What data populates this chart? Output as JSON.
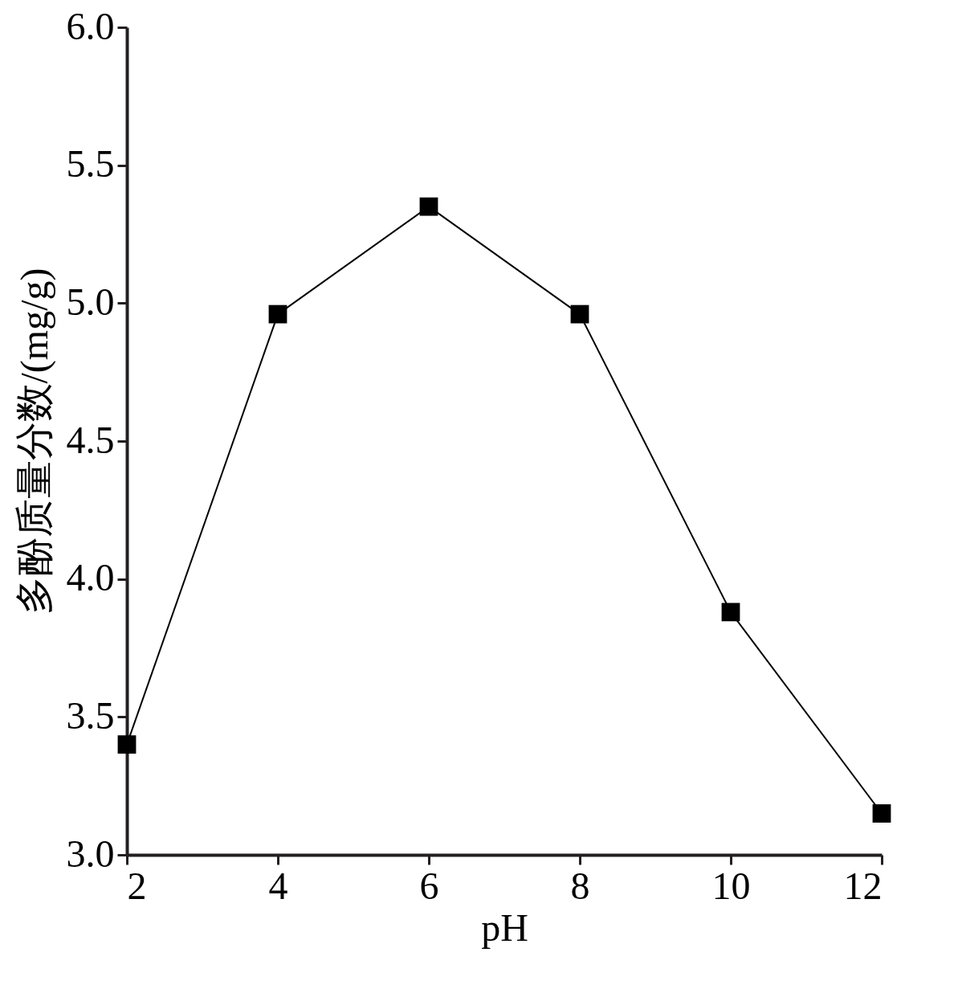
{
  "chart_data": {
    "type": "line",
    "xlabel": "pH",
    "ylabel": "多酚质量分数/(mg/g)",
    "x": [
      2,
      4,
      6,
      8,
      10,
      12
    ],
    "series": [
      {
        "color": "#000000",
        "values": [
          3.4,
          4.96,
          5.35,
          4.96,
          3.88,
          3.15
        ]
      }
    ],
    "xlim": [
      2,
      12
    ],
    "xticks": [
      2,
      4,
      6,
      8,
      10,
      12
    ],
    "ylim": [
      3.0,
      6.0
    ],
    "yticks": [
      {
        "value": 3.0,
        "label": "3.0"
      },
      {
        "value": 3.5,
        "label": "3.5"
      },
      {
        "value": 4.0,
        "label": "4.0"
      },
      {
        "value": 4.5,
        "label": "4.5"
      },
      {
        "value": 5.0,
        "label": "5.0"
      },
      {
        "value": 5.5,
        "label": "5.5"
      },
      {
        "value": 6.0,
        "label": "6.0"
      }
    ],
    "grid": false,
    "marker": "square",
    "line_style": "solid"
  }
}
